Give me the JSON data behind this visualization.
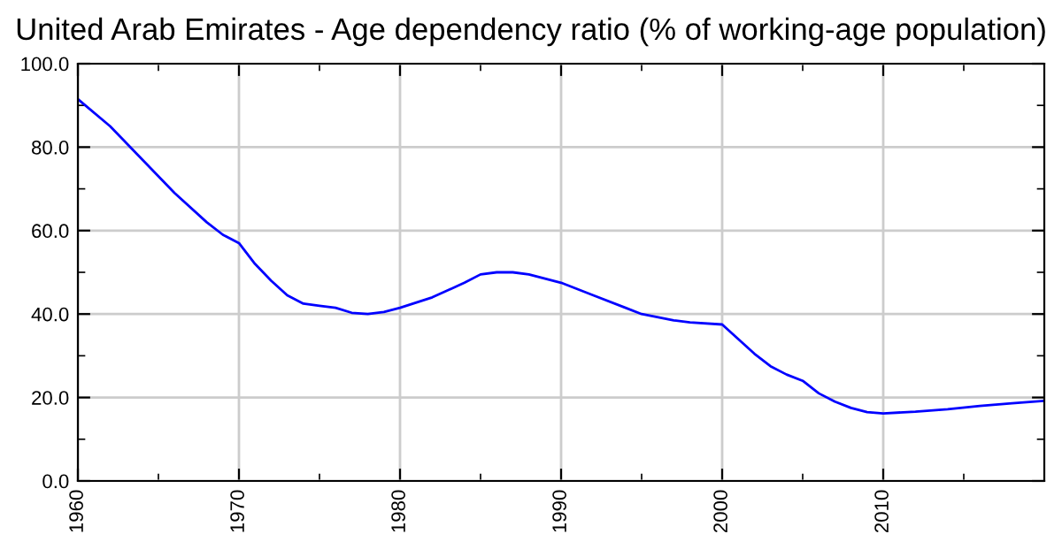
{
  "chart_data": {
    "type": "line",
    "title": "United Arab Emirates - Age dependency ratio (% of working-age population)",
    "x": [
      1960,
      1962,
      1964,
      1966,
      1968,
      1969,
      1970,
      1971,
      1972,
      1973,
      1974,
      1975,
      1976,
      1977,
      1978,
      1979,
      1980,
      1982,
      1984,
      1985,
      1986,
      1987,
      1988,
      1989,
      1990,
      1992,
      1994,
      1995,
      1997,
      1998,
      2000,
      2001,
      2002,
      2003,
      2004,
      2005,
      2006,
      2007,
      2008,
      2009,
      2010,
      2012,
      2014,
      2016,
      2018,
      2020
    ],
    "series": [
      {
        "color": "#0000ff",
        "values": [
          91.5,
          85,
          77,
          69,
          62,
          59,
          57,
          52,
          48,
          44.5,
          42.5,
          42,
          41.5,
          40.3,
          40,
          40.5,
          41.5,
          44,
          47.5,
          49.5,
          50,
          50,
          49.5,
          48.5,
          47.5,
          44.5,
          41.5,
          40,
          38.5,
          38,
          37.5,
          34,
          30.5,
          27.5,
          25.5,
          24,
          21,
          19,
          17.5,
          16.5,
          16.2,
          16.6,
          17.2,
          18,
          18.6,
          19.2
        ]
      }
    ],
    "xlim": [
      1960,
      2020
    ],
    "xticks": [
      1960,
      1970,
      1980,
      1990,
      2000,
      2010
    ],
    "ylim": [
      0,
      100
    ],
    "yticks": [
      {
        "value": 0,
        "label": "0.0"
      },
      {
        "value": 20,
        "label": "20.0"
      },
      {
        "value": 40,
        "label": "40.0"
      },
      {
        "value": 60,
        "label": "60.0"
      },
      {
        "value": 80,
        "label": "80.0"
      },
      {
        "value": 100,
        "label": "100.0"
      }
    ],
    "grid": true,
    "legend": false,
    "marker": "none",
    "line_style": "solid"
  }
}
